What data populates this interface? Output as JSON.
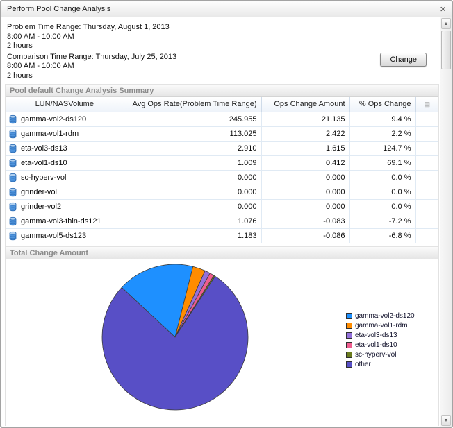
{
  "window": {
    "title": "Perform Pool Change Analysis"
  },
  "icons": {
    "close": "×",
    "scroll_up": "▲",
    "scroll_down": "▼",
    "column_options": "▤",
    "volume": "database-cylinder"
  },
  "header": {
    "problem_label": "Problem Time Range: Thursday, August 1, 2013",
    "problem_time": "8:00 AM - 10:00 AM",
    "problem_duration": "2 hours",
    "comparison_label": "Comparison Time Range: Thursday, July 25, 2013",
    "comparison_time": "8:00 AM - 10:00 AM",
    "comparison_duration": "2 hours",
    "change_button": "Change"
  },
  "summary": {
    "section_title": "Pool default Change Analysis Summary",
    "columns": [
      "LUN/NASVolume",
      "Avg Ops Rate(Problem Time Range)",
      "Ops Change Amount",
      "% Ops Change"
    ],
    "rows": [
      {
        "name": "gamma-vol2-ds120",
        "avg_ops": "245.955",
        "change": "21.135",
        "pct": "9.4 %"
      },
      {
        "name": "gamma-vol1-rdm",
        "avg_ops": "113.025",
        "change": "2.422",
        "pct": "2.2 %"
      },
      {
        "name": "eta-vol3-ds13",
        "avg_ops": "2.910",
        "change": "1.615",
        "pct": "124.7 %"
      },
      {
        "name": "eta-vol1-ds10",
        "avg_ops": "1.009",
        "change": "0.412",
        "pct": "69.1 %"
      },
      {
        "name": "sc-hyperv-vol",
        "avg_ops": "0.000",
        "change": "0.000",
        "pct": "0.0 %"
      },
      {
        "name": "grinder-vol",
        "avg_ops": "0.000",
        "change": "0.000",
        "pct": "0.0 %"
      },
      {
        "name": "grinder-vol2",
        "avg_ops": "0.000",
        "change": "0.000",
        "pct": "0.0 %"
      },
      {
        "name": "gamma-vol3-thin-ds121",
        "avg_ops": "1.076",
        "change": "-0.083",
        "pct": "-7.2 %"
      },
      {
        "name": "gamma-vol5-ds123",
        "avg_ops": "1.183",
        "change": "-0.086",
        "pct": "-6.8 %"
      }
    ]
  },
  "chart": {
    "section_title": "Total Change Amount"
  },
  "chart_data": {
    "type": "pie",
    "title": "Total Change Amount",
    "legend_position": "right",
    "start_angle_deg": -47,
    "slices": [
      {
        "label": "gamma-vol2-ds120",
        "value": 17.0,
        "color": "#1e90ff"
      },
      {
        "label": "gamma-vol1-rdm",
        "value": 2.8,
        "color": "#ff8c00"
      },
      {
        "label": "eta-vol3-ds13",
        "value": 1.2,
        "color": "#9370db"
      },
      {
        "label": "eta-vol1-ds10",
        "value": 1.0,
        "color": "#ef5d8f"
      },
      {
        "label": "sc-hyperv-vol",
        "value": 0.3,
        "color": "#6b7c1e"
      },
      {
        "label": "other",
        "value": 77.7,
        "color": "#584fc6"
      }
    ]
  }
}
